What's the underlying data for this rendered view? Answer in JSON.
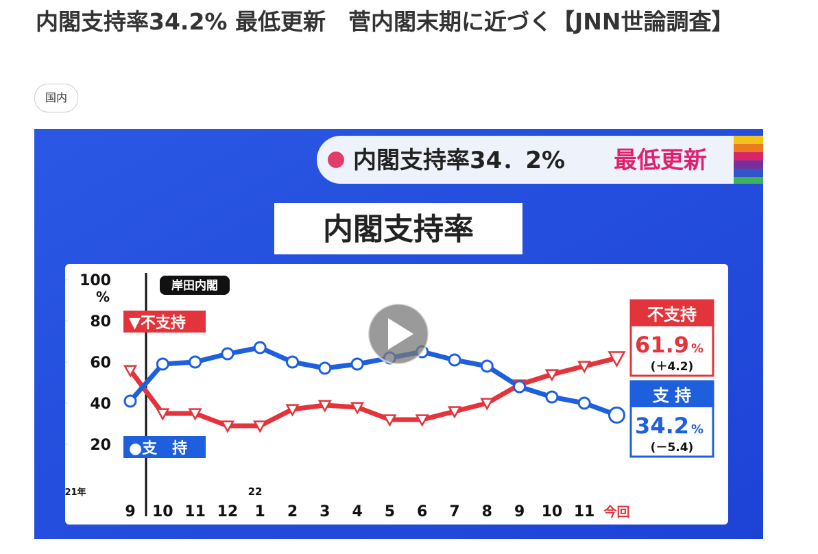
{
  "header": {
    "title": "内閣支持率34.2% 最低更新　菅内閣末期に近づく【JNN世論調査】",
    "tag": "国内"
  },
  "banner": {
    "text": "内閣支持率34．2%",
    "highlight": "最低更新"
  },
  "chart_data": {
    "type": "line",
    "title": "内閣支持率",
    "categories": [
      "9",
      "10",
      "11",
      "12",
      "1",
      "2",
      "3",
      "4",
      "5",
      "6",
      "7",
      "8",
      "9",
      "10",
      "11",
      "今回"
    ],
    "year_labels": {
      "start": "21年",
      "mid": "22"
    },
    "ylim": [
      0,
      100
    ],
    "yticks": [
      20,
      40,
      60,
      80,
      100
    ],
    "y_unit": "%",
    "annotation": "岸田内閣",
    "series": [
      {
        "name": "▼不支持",
        "color": "#e3343b",
        "values": [
          56,
          35,
          35,
          29,
          29,
          37,
          39,
          38,
          32,
          32,
          36,
          40,
          49,
          54,
          58,
          61.9
        ]
      },
      {
        "name": "●支　持",
        "color": "#1d5fdc",
        "values": [
          41,
          59,
          60,
          64,
          67,
          60,
          57,
          59,
          62,
          65,
          61,
          58,
          48,
          43,
          40,
          34.2
        ]
      }
    ],
    "callouts": [
      {
        "label": "不支持",
        "value": 61.9,
        "unit": "%",
        "change": "(＋4.2)"
      },
      {
        "label": "支 持",
        "value": 34.2,
        "unit": "%",
        "change": "(－5.4)"
      }
    ]
  }
}
